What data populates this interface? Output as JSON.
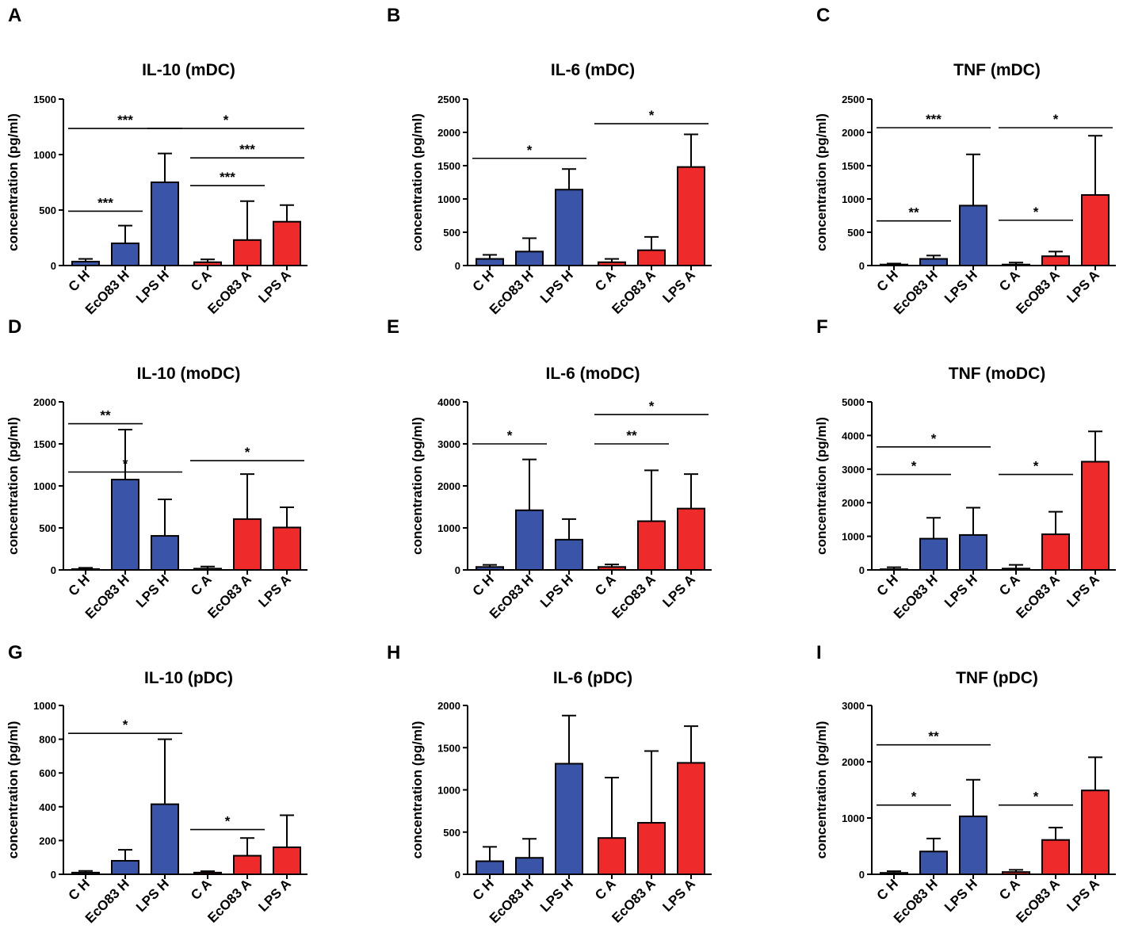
{
  "colors": {
    "healthy": "#3a55a8",
    "allergic": "#ee2a2a",
    "axis": "#000000"
  },
  "chart_data": [
    {
      "id": "A",
      "type": "bar",
      "title": "IL-10 (mDC)",
      "ylabel": "concentration (pg/ml)",
      "ylim": [
        0,
        1500
      ],
      "yticks": [
        0,
        500,
        1000,
        1500
      ],
      "categories": [
        "C H",
        "EcO83 H",
        "LPS H",
        "C A",
        "EcO83 A",
        "LPS A"
      ],
      "values": [
        35,
        200,
        750,
        30,
        230,
        395
      ],
      "errors": [
        25,
        160,
        260,
        25,
        350,
        150
      ],
      "groups": [
        "healthy",
        "healthy",
        "healthy",
        "allergic",
        "allergic",
        "allergic"
      ],
      "significance": [
        {
          "from": 0,
          "to": 2,
          "y": 1235,
          "label": "***"
        },
        {
          "from": 2,
          "to": 5,
          "y": 1235,
          "label": "*"
        },
        {
          "from": 3,
          "to": 5,
          "y": 970,
          "label": "***"
        },
        {
          "from": 3,
          "to": 4,
          "y": 720,
          "label": "***"
        },
        {
          "from": 0,
          "to": 1,
          "y": 490,
          "label": "***"
        }
      ]
    },
    {
      "id": "B",
      "type": "bar",
      "title": "IL-6 (mDC)",
      "ylabel": "concentration (pg/ml)",
      "ylim": [
        0,
        2500
      ],
      "yticks": [
        0,
        500,
        1000,
        1500,
        2000,
        2500
      ],
      "categories": [
        "C H",
        "EcO83 H",
        "LPS H",
        "C A",
        "EcO83 A",
        "LPS A"
      ],
      "values": [
        100,
        210,
        1140,
        50,
        230,
        1480
      ],
      "errors": [
        60,
        200,
        310,
        50,
        200,
        490
      ],
      "groups": [
        "healthy",
        "healthy",
        "healthy",
        "allergic",
        "allergic",
        "allergic"
      ],
      "significance": [
        {
          "from": 0,
          "to": 2,
          "y": 1610,
          "label": "*"
        },
        {
          "from": 3,
          "to": 5,
          "y": 2130,
          "label": "*"
        }
      ]
    },
    {
      "id": "C",
      "type": "bar",
      "title": "TNF (mDC)",
      "ylabel": "concentration (pg/ml)",
      "ylim": [
        0,
        2500
      ],
      "yticks": [
        0,
        500,
        1000,
        1500,
        2000,
        2500
      ],
      "categories": [
        "C H",
        "EcO83 H",
        "LPS H",
        "C A",
        "EcO83 A",
        "LPS A"
      ],
      "values": [
        15,
        100,
        900,
        15,
        140,
        1060
      ],
      "errors": [
        15,
        50,
        770,
        30,
        70,
        890
      ],
      "groups": [
        "healthy",
        "healthy",
        "healthy",
        "allergic",
        "allergic",
        "allergic"
      ],
      "significance": [
        {
          "from": 0,
          "to": 2,
          "y": 2070,
          "label": "***"
        },
        {
          "from": 3,
          "to": 5,
          "y": 2070,
          "label": "*"
        },
        {
          "from": 0,
          "to": 1,
          "y": 670,
          "label": "**"
        },
        {
          "from": 3,
          "to": 4,
          "y": 680,
          "label": "*"
        }
      ]
    },
    {
      "id": "D",
      "type": "bar",
      "title": "IL-10 (moDC)",
      "ylabel": "concentration (pg/ml)",
      "ylim": [
        0,
        2000
      ],
      "yticks": [
        0,
        500,
        1000,
        1500,
        2000
      ],
      "categories": [
        "C H",
        "EcO83 H",
        "LPS H",
        "C A",
        "EcO83 A",
        "LPS A"
      ],
      "values": [
        10,
        1075,
        405,
        15,
        605,
        505
      ],
      "errors": [
        15,
        595,
        435,
        25,
        535,
        240
      ],
      "groups": [
        "healthy",
        "healthy",
        "healthy",
        "allergic",
        "allergic",
        "allergic"
      ],
      "significance": [
        {
          "from": 0,
          "to": 1,
          "y": 1740,
          "label": "**"
        },
        {
          "from": 0,
          "to": 2,
          "y": 1165,
          "label": "*"
        },
        {
          "from": 3,
          "to": 5,
          "y": 1300,
          "label": "*"
        }
      ]
    },
    {
      "id": "E",
      "type": "bar",
      "title": "IL-6 (moDC)",
      "ylabel": "concentration (pg/ml)",
      "ylim": [
        0,
        4000
      ],
      "yticks": [
        0,
        1000,
        2000,
        3000,
        4000
      ],
      "categories": [
        "C H",
        "EcO83 H",
        "LPS H",
        "C A",
        "EcO83 A",
        "LPS A"
      ],
      "values": [
        70,
        1420,
        720,
        70,
        1160,
        1460
      ],
      "errors": [
        50,
        1210,
        490,
        60,
        1210,
        820
      ],
      "groups": [
        "healthy",
        "healthy",
        "healthy",
        "allergic",
        "allergic",
        "allergic"
      ],
      "significance": [
        {
          "from": 0,
          "to": 1,
          "y": 3000,
          "label": "*"
        },
        {
          "from": 3,
          "to": 5,
          "y": 3700,
          "label": "*"
        },
        {
          "from": 3,
          "to": 4,
          "y": 3000,
          "label": "**"
        }
      ]
    },
    {
      "id": "F",
      "type": "bar",
      "title": "TNF (moDC)",
      "ylabel": "concentration (pg/ml)",
      "ylim": [
        0,
        5000
      ],
      "yticks": [
        0,
        1000,
        2000,
        3000,
        4000,
        5000
      ],
      "categories": [
        "C H",
        "EcO83 H",
        "LPS H",
        "C A",
        "EcO83 A",
        "LPS A"
      ],
      "values": [
        20,
        930,
        1040,
        40,
        1060,
        3220
      ],
      "errors": [
        60,
        620,
        810,
        110,
        670,
        900
      ],
      "groups": [
        "healthy",
        "healthy",
        "healthy",
        "allergic",
        "allergic",
        "allergic"
      ],
      "significance": [
        {
          "from": 0,
          "to": 2,
          "y": 3660,
          "label": "*"
        },
        {
          "from": 0,
          "to": 1,
          "y": 2840,
          "label": "*"
        },
        {
          "from": 3,
          "to": 4,
          "y": 2840,
          "label": "*"
        }
      ]
    },
    {
      "id": "G",
      "type": "bar",
      "title": "IL-10 (pDC)",
      "ylabel": "concentration (pg/ml)",
      "ylim": [
        0,
        1000
      ],
      "yticks": [
        0,
        200,
        400,
        600,
        800,
        1000
      ],
      "categories": [
        "C H",
        "EcO83 H",
        "LPS H",
        "C A",
        "EcO83 A",
        "LPS A"
      ],
      "values": [
        10,
        80,
        415,
        10,
        110,
        160
      ],
      "errors": [
        10,
        65,
        385,
        8,
        105,
        190
      ],
      "groups": [
        "healthy",
        "healthy",
        "healthy",
        "allergic",
        "allergic",
        "allergic"
      ],
      "significance": [
        {
          "from": 0,
          "to": 2,
          "y": 835,
          "label": "*"
        },
        {
          "from": 3,
          "to": 4,
          "y": 265,
          "label": "*"
        }
      ]
    },
    {
      "id": "H",
      "type": "bar",
      "title": "IL-6 (pDC)",
      "ylabel": "concentration (pg/ml)",
      "ylim": [
        0,
        2000
      ],
      "yticks": [
        0,
        500,
        1000,
        1500,
        2000
      ],
      "categories": [
        "C H",
        "EcO83 H",
        "LPS H",
        "C A",
        "EcO83 A",
        "LPS A"
      ],
      "values": [
        155,
        195,
        1310,
        430,
        610,
        1320
      ],
      "errors": [
        170,
        225,
        570,
        715,
        850,
        435
      ],
      "groups": [
        "healthy",
        "healthy",
        "healthy",
        "allergic",
        "allergic",
        "allergic"
      ],
      "significance": []
    },
    {
      "id": "I",
      "type": "bar",
      "title": "TNF (pDC)",
      "ylabel": "concentration (pg/ml)",
      "ylim": [
        0,
        3000
      ],
      "yticks": [
        0,
        1000,
        2000,
        3000
      ],
      "categories": [
        "C H",
        "EcO83 H",
        "LPS H",
        "C A",
        "EcO83 A",
        "LPS A"
      ],
      "values": [
        25,
        405,
        1030,
        40,
        610,
        1490
      ],
      "errors": [
        30,
        230,
        650,
        40,
        220,
        590
      ],
      "groups": [
        "healthy",
        "healthy",
        "healthy",
        "allergic",
        "allergic",
        "allergic"
      ],
      "significance": [
        {
          "from": 0,
          "to": 2,
          "y": 2300,
          "label": "**"
        },
        {
          "from": 0,
          "to": 1,
          "y": 1230,
          "label": "*"
        },
        {
          "from": 3,
          "to": 4,
          "y": 1230,
          "label": "*"
        }
      ]
    }
  ]
}
